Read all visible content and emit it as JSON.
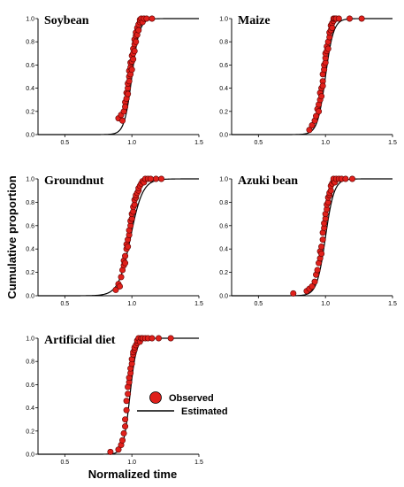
{
  "figure": {
    "ylabel": "Cumulative proportion",
    "xlabel": "Normalized time",
    "legend": {
      "observed": "Observed",
      "estimated": "Estimated",
      "marker_color": "#e0201b",
      "line_color": "#000000"
    }
  },
  "chart_data": [
    {
      "type": "scatter",
      "title": "Soybean",
      "xlim": [
        0.3,
        1.5
      ],
      "ylim": [
        0,
        1.0
      ],
      "xticks": [
        "0.5",
        "1.0",
        "1.5"
      ],
      "yticks": [
        "0.0",
        "0.2",
        "0.4",
        "0.6",
        "0.8",
        "1.0"
      ],
      "fit": {
        "type": "logistic",
        "mu": 1.0,
        "s": 0.028,
        "x_range": [
          0.3,
          1.5
        ]
      },
      "series": [
        {
          "name": "Observed",
          "x": [
            0.9,
            0.92,
            0.93,
            0.94,
            0.95,
            0.95,
            0.96,
            0.96,
            0.97,
            0.97,
            0.97,
            0.98,
            0.98,
            0.98,
            0.99,
            0.99,
            0.99,
            1.0,
            1.0,
            1.0,
            1.01,
            1.01,
            1.01,
            1.02,
            1.02,
            1.02,
            1.03,
            1.03,
            1.03,
            1.04,
            1.04,
            1.05,
            1.05,
            1.06,
            1.06,
            1.07,
            1.08,
            1.09,
            1.11,
            1.15
          ],
          "y": [
            0.14,
            0.17,
            0.12,
            0.2,
            0.28,
            0.24,
            0.36,
            0.31,
            0.4,
            0.44,
            0.35,
            0.5,
            0.46,
            0.55,
            0.58,
            0.52,
            0.62,
            0.63,
            0.68,
            0.56,
            0.7,
            0.74,
            0.65,
            0.78,
            0.72,
            0.82,
            0.85,
            0.8,
            0.88,
            0.92,
            0.86,
            0.95,
            0.9,
            0.97,
            0.99,
            1.0,
            0.97,
            1.0,
            1.0,
            1.0
          ]
        },
        {
          "name": "Estimated"
        }
      ]
    },
    {
      "type": "scatter",
      "title": "Maize",
      "xlim": [
        0.3,
        1.5
      ],
      "ylim": [
        0,
        1.0
      ],
      "xticks": [
        "0.5",
        "1.0",
        "1.5"
      ],
      "yticks": [
        "0.0",
        "0.2",
        "0.4",
        "0.6",
        "0.8",
        "1.0"
      ],
      "fit": {
        "type": "logistic",
        "mu": 1.0,
        "s": 0.03,
        "x_range": [
          0.3,
          1.5
        ]
      },
      "series": [
        {
          "name": "Observed",
          "x": [
            0.88,
            0.9,
            0.92,
            0.93,
            0.94,
            0.95,
            0.95,
            0.96,
            0.96,
            0.97,
            0.97,
            0.98,
            0.98,
            0.98,
            0.99,
            0.99,
            1.0,
            1.0,
            1.0,
            1.01,
            1.01,
            1.02,
            1.02,
            1.03,
            1.03,
            1.04,
            1.04,
            1.05,
            1.05,
            1.06,
            1.06,
            1.07,
            1.08,
            1.1,
            1.18,
            1.27
          ],
          "y": [
            0.04,
            0.08,
            0.12,
            0.16,
            0.22,
            0.26,
            0.2,
            0.3,
            0.36,
            0.4,
            0.33,
            0.46,
            0.42,
            0.52,
            0.56,
            0.6,
            0.62,
            0.66,
            0.7,
            0.72,
            0.76,
            0.8,
            0.74,
            0.84,
            0.88,
            0.9,
            0.94,
            0.96,
            0.92,
            0.98,
            1.0,
            1.0,
            1.0,
            1.0,
            1.0,
            1.0
          ]
        },
        {
          "name": "Estimated"
        }
      ]
    },
    {
      "type": "scatter",
      "title": "Groundnut",
      "xlim": [
        0.3,
        1.5
      ],
      "ylim": [
        0,
        1.0
      ],
      "xticks": [
        "0.5",
        "1.0",
        "1.5"
      ],
      "yticks": [
        "0.0",
        "0.2",
        "0.4",
        "0.6",
        "0.8",
        "1.0"
      ],
      "fit": {
        "type": "logistic",
        "mu": 0.99,
        "s": 0.045,
        "x_range": [
          0.3,
          1.5
        ]
      },
      "series": [
        {
          "name": "Observed",
          "x": [
            0.88,
            0.9,
            0.91,
            0.92,
            0.93,
            0.94,
            0.94,
            0.95,
            0.95,
            0.96,
            0.96,
            0.97,
            0.97,
            0.98,
            0.98,
            0.99,
            0.99,
            1.0,
            1.0,
            1.01,
            1.01,
            1.02,
            1.02,
            1.03,
            1.03,
            1.04,
            1.05,
            1.05,
            1.06,
            1.07,
            1.08,
            1.09,
            1.1,
            1.12,
            1.14,
            1.18,
            1.22
          ],
          "y": [
            0.05,
            0.1,
            0.08,
            0.16,
            0.22,
            0.26,
            0.3,
            0.34,
            0.28,
            0.4,
            0.44,
            0.48,
            0.42,
            0.52,
            0.56,
            0.6,
            0.64,
            0.66,
            0.7,
            0.72,
            0.76,
            0.78,
            0.82,
            0.84,
            0.86,
            0.88,
            0.9,
            0.92,
            0.94,
            0.96,
            0.98,
            0.97,
            1.0,
            1.0,
            1.0,
            1.0,
            1.0
          ]
        },
        {
          "name": "Estimated"
        }
      ]
    },
    {
      "type": "scatter",
      "title": "Azuki bean",
      "xlim": [
        0.3,
        1.5
      ],
      "ylim": [
        0,
        1.0
      ],
      "xticks": [
        "0.5",
        "1.0",
        "1.5"
      ],
      "yticks": [
        "0.0",
        "0.2",
        "0.4",
        "0.6",
        "0.8",
        "1.0"
      ],
      "fit": {
        "type": "logistic",
        "mu": 1.0,
        "s": 0.032,
        "x_range": [
          0.3,
          1.5
        ]
      },
      "series": [
        {
          "name": "Observed",
          "x": [
            0.76,
            0.86,
            0.88,
            0.9,
            0.92,
            0.93,
            0.94,
            0.95,
            0.96,
            0.96,
            0.97,
            0.97,
            0.98,
            0.98,
            0.99,
            0.99,
            1.0,
            1.0,
            1.01,
            1.01,
            1.02,
            1.02,
            1.03,
            1.03,
            1.04,
            1.04,
            1.05,
            1.06,
            1.06,
            1.07,
            1.08,
            1.1,
            1.12,
            1.15,
            1.2
          ],
          "y": [
            0.02,
            0.04,
            0.06,
            0.08,
            0.12,
            0.18,
            0.22,
            0.28,
            0.32,
            0.38,
            0.42,
            0.36,
            0.48,
            0.54,
            0.58,
            0.62,
            0.66,
            0.7,
            0.74,
            0.78,
            0.8,
            0.84,
            0.86,
            0.88,
            0.9,
            0.94,
            0.96,
            0.98,
            1.0,
            0.97,
            1.0,
            1.0,
            1.0,
            1.0,
            1.0
          ]
        },
        {
          "name": "Estimated"
        }
      ]
    },
    {
      "type": "scatter",
      "title": "Artificial diet",
      "xlim": [
        0.3,
        1.5
      ],
      "ylim": [
        0,
        1.0
      ],
      "xticks": [
        "0.5",
        "1.0",
        "1.5"
      ],
      "yticks": [
        "0.0",
        "0.2",
        "0.4",
        "0.6",
        "0.8",
        "1.0"
      ],
      "fit": {
        "type": "logistic",
        "mu": 0.985,
        "s": 0.024,
        "x_range": [
          0.3,
          1.5
        ]
      },
      "series": [
        {
          "name": "Observed",
          "x": [
            0.84,
            0.9,
            0.92,
            0.93,
            0.94,
            0.95,
            0.95,
            0.96,
            0.96,
            0.97,
            0.97,
            0.98,
            0.98,
            0.99,
            0.99,
            1.0,
            1.0,
            1.01,
            1.01,
            1.02,
            1.02,
            1.03,
            1.04,
            1.04,
            1.05,
            1.06,
            1.07,
            1.08,
            1.1,
            1.12,
            1.15,
            1.2,
            1.29
          ],
          "y": [
            0.02,
            0.04,
            0.08,
            0.12,
            0.18,
            0.24,
            0.3,
            0.38,
            0.46,
            0.52,
            0.58,
            0.62,
            0.66,
            0.7,
            0.74,
            0.78,
            0.82,
            0.86,
            0.88,
            0.9,
            0.92,
            0.94,
            0.96,
            0.98,
            1.0,
            0.97,
            1.0,
            1.0,
            1.0,
            1.0,
            1.0,
            1.0,
            1.0
          ]
        },
        {
          "name": "Estimated"
        }
      ]
    }
  ]
}
